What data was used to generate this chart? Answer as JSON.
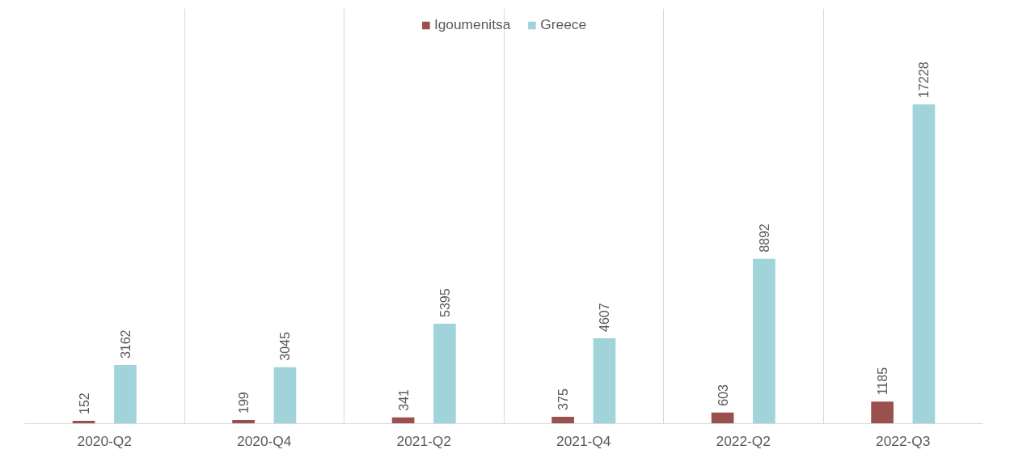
{
  "chart_data": {
    "type": "bar",
    "categories": [
      "2020-Q2",
      "2020-Q4",
      "2021-Q2",
      "2021-Q4",
      "2022-Q2",
      "2022-Q3"
    ],
    "series": [
      {
        "name": "Igoumenitsa",
        "color": "#9a504d",
        "values": [
          152,
          199,
          341,
          375,
          603,
          1185
        ]
      },
      {
        "name": "Greece",
        "color": "#a0d4da",
        "values": [
          3162,
          3045,
          5395,
          4607,
          8892,
          17228
        ]
      }
    ],
    "data_labels": true,
    "legend": "top",
    "grid": "x"
  }
}
